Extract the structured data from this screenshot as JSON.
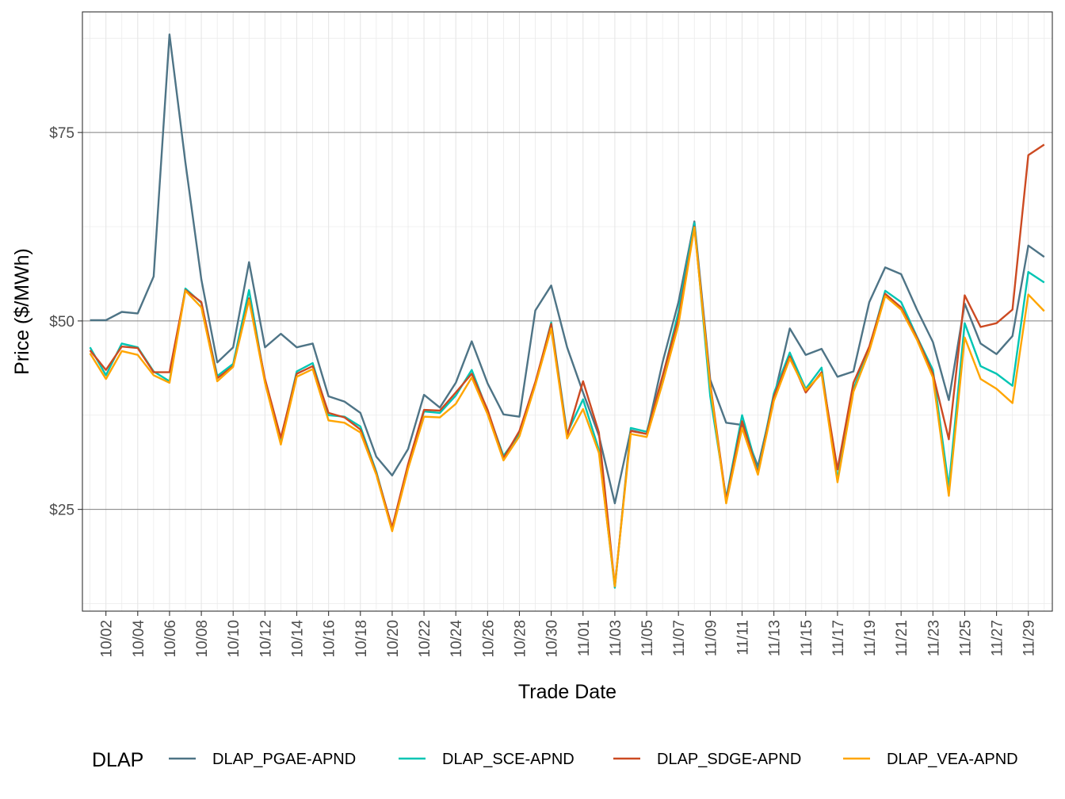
{
  "chart_data": {
    "type": "line",
    "xlabel": "Trade Date",
    "ylabel": "Price ($/MWh)",
    "ylim": [
      11.5,
      91.0
    ],
    "y_ticks": [
      25,
      50,
      75
    ],
    "y_tick_labels": [
      "$25",
      "$50",
      "$75"
    ],
    "x_tick_labels": [
      "10/02",
      "10/04",
      "10/06",
      "10/08",
      "10/10",
      "10/12",
      "10/14",
      "10/16",
      "10/18",
      "10/20",
      "10/22",
      "10/24",
      "10/26",
      "10/28",
      "10/30",
      "11/01",
      "11/03",
      "11/05",
      "11/07",
      "11/09",
      "11/11",
      "11/13",
      "11/15",
      "11/17",
      "11/19",
      "11/21",
      "11/23",
      "11/25",
      "11/27",
      "11/29"
    ],
    "x": [
      "10/01",
      "10/02",
      "10/03",
      "10/04",
      "10/05",
      "10/06",
      "10/07",
      "10/08",
      "10/09",
      "10/10",
      "10/11",
      "10/12",
      "10/13",
      "10/14",
      "10/15",
      "10/16",
      "10/17",
      "10/18",
      "10/19",
      "10/20",
      "10/21",
      "10/22",
      "10/23",
      "10/24",
      "10/25",
      "10/26",
      "10/27",
      "10/28",
      "10/29",
      "10/30",
      "10/31",
      "11/01",
      "11/02",
      "11/03",
      "11/04",
      "11/05",
      "11/06",
      "11/07",
      "11/08",
      "11/09",
      "11/10",
      "11/11",
      "11/12",
      "11/13",
      "11/14",
      "11/15",
      "11/16",
      "11/17",
      "11/18",
      "11/19",
      "11/20",
      "11/21",
      "11/22",
      "11/23",
      "11/24",
      "11/25",
      "11/26",
      "11/27",
      "11/28",
      "11/29",
      "11/30"
    ],
    "grid": true,
    "legend_position": "bottom",
    "legend_title": "DLAP",
    "series": [
      {
        "name": "DLAP_PGAE-APND",
        "color": "#4e7486",
        "values": [
          50.1,
          50.1,
          51.2,
          51.0,
          55.9,
          88.0,
          71.0,
          55.5,
          44.5,
          46.5,
          57.8,
          46.5,
          48.3,
          46.5,
          47.0,
          40.0,
          39.3,
          37.8,
          32.0,
          29.5,
          33.0,
          40.2,
          38.5,
          41.8,
          47.3,
          41.7,
          37.6,
          37.3,
          51.4,
          54.7,
          46.5,
          40.5,
          34.8,
          25.8,
          35.5,
          35.0,
          44.5,
          52.5,
          63.2,
          42.2,
          36.5,
          36.2,
          30.7,
          39.8,
          49.0,
          45.5,
          46.3,
          42.6,
          43.3,
          52.5,
          57.1,
          56.2,
          51.5,
          47.2,
          39.5,
          52.3,
          47.0,
          45.6,
          48.0,
          60.0,
          58.5
        ]
      },
      {
        "name": "DLAP_SCE-APND",
        "color": "#00c5b3",
        "values": [
          46.5,
          42.8,
          47.0,
          46.5,
          43.3,
          42.0,
          54.3,
          52.4,
          42.7,
          44.3,
          54.1,
          42.0,
          34.2,
          43.3,
          44.4,
          37.5,
          37.3,
          36.0,
          30.0,
          22.4,
          30.8,
          38.0,
          37.8,
          40.1,
          43.5,
          38.0,
          32.1,
          35.0,
          41.6,
          49.8,
          35.1,
          39.6,
          32.9,
          14.6,
          35.8,
          35.3,
          42.5,
          51.2,
          63.0,
          40.0,
          26.5,
          37.5,
          30.0,
          40.4,
          45.8,
          41.0,
          43.8,
          29.0,
          41.0,
          46.4,
          54.0,
          52.5,
          47.9,
          43.5,
          28.0,
          49.7,
          44.0,
          43.0,
          41.4,
          56.5,
          55.1
        ]
      },
      {
        "name": "DLAP_SDGE-APND",
        "color": "#cc4a22",
        "values": [
          46.1,
          43.5,
          46.6,
          46.4,
          43.2,
          43.2,
          54.1,
          52.5,
          42.4,
          44.0,
          53.0,
          42.3,
          34.5,
          43.0,
          44.0,
          37.8,
          37.2,
          35.6,
          29.8,
          22.6,
          31.0,
          38.2,
          38.1,
          40.5,
          43.0,
          38.2,
          31.8,
          35.4,
          41.9,
          49.6,
          34.8,
          42.0,
          35.2,
          14.8,
          35.4,
          35.0,
          42.7,
          50.3,
          62.5,
          41.7,
          26.2,
          36.7,
          29.8,
          40.0,
          45.3,
          40.5,
          43.2,
          30.3,
          41.8,
          46.6,
          53.6,
          51.8,
          47.8,
          43.0,
          34.3,
          53.4,
          49.2,
          49.7,
          51.5,
          72.0,
          73.4
        ]
      },
      {
        "name": "DLAP_VEA-APND",
        "color": "#ffa500",
        "values": [
          45.7,
          42.3,
          46.0,
          45.5,
          42.8,
          41.8,
          54.0,
          51.8,
          42.0,
          43.9,
          52.8,
          41.8,
          33.6,
          42.6,
          43.6,
          36.8,
          36.5,
          35.2,
          29.6,
          22.1,
          30.4,
          37.3,
          37.2,
          39.0,
          42.5,
          37.6,
          31.5,
          34.7,
          41.5,
          49.0,
          34.4,
          38.3,
          32.5,
          14.8,
          35.0,
          34.6,
          41.7,
          49.5,
          62.4,
          41.3,
          25.8,
          35.8,
          29.6,
          39.4,
          45.0,
          40.8,
          43.0,
          28.6,
          40.6,
          46.0,
          53.3,
          51.5,
          47.5,
          42.5,
          26.8,
          47.8,
          42.3,
          41.0,
          39.1,
          53.5,
          51.3
        ]
      }
    ]
  }
}
